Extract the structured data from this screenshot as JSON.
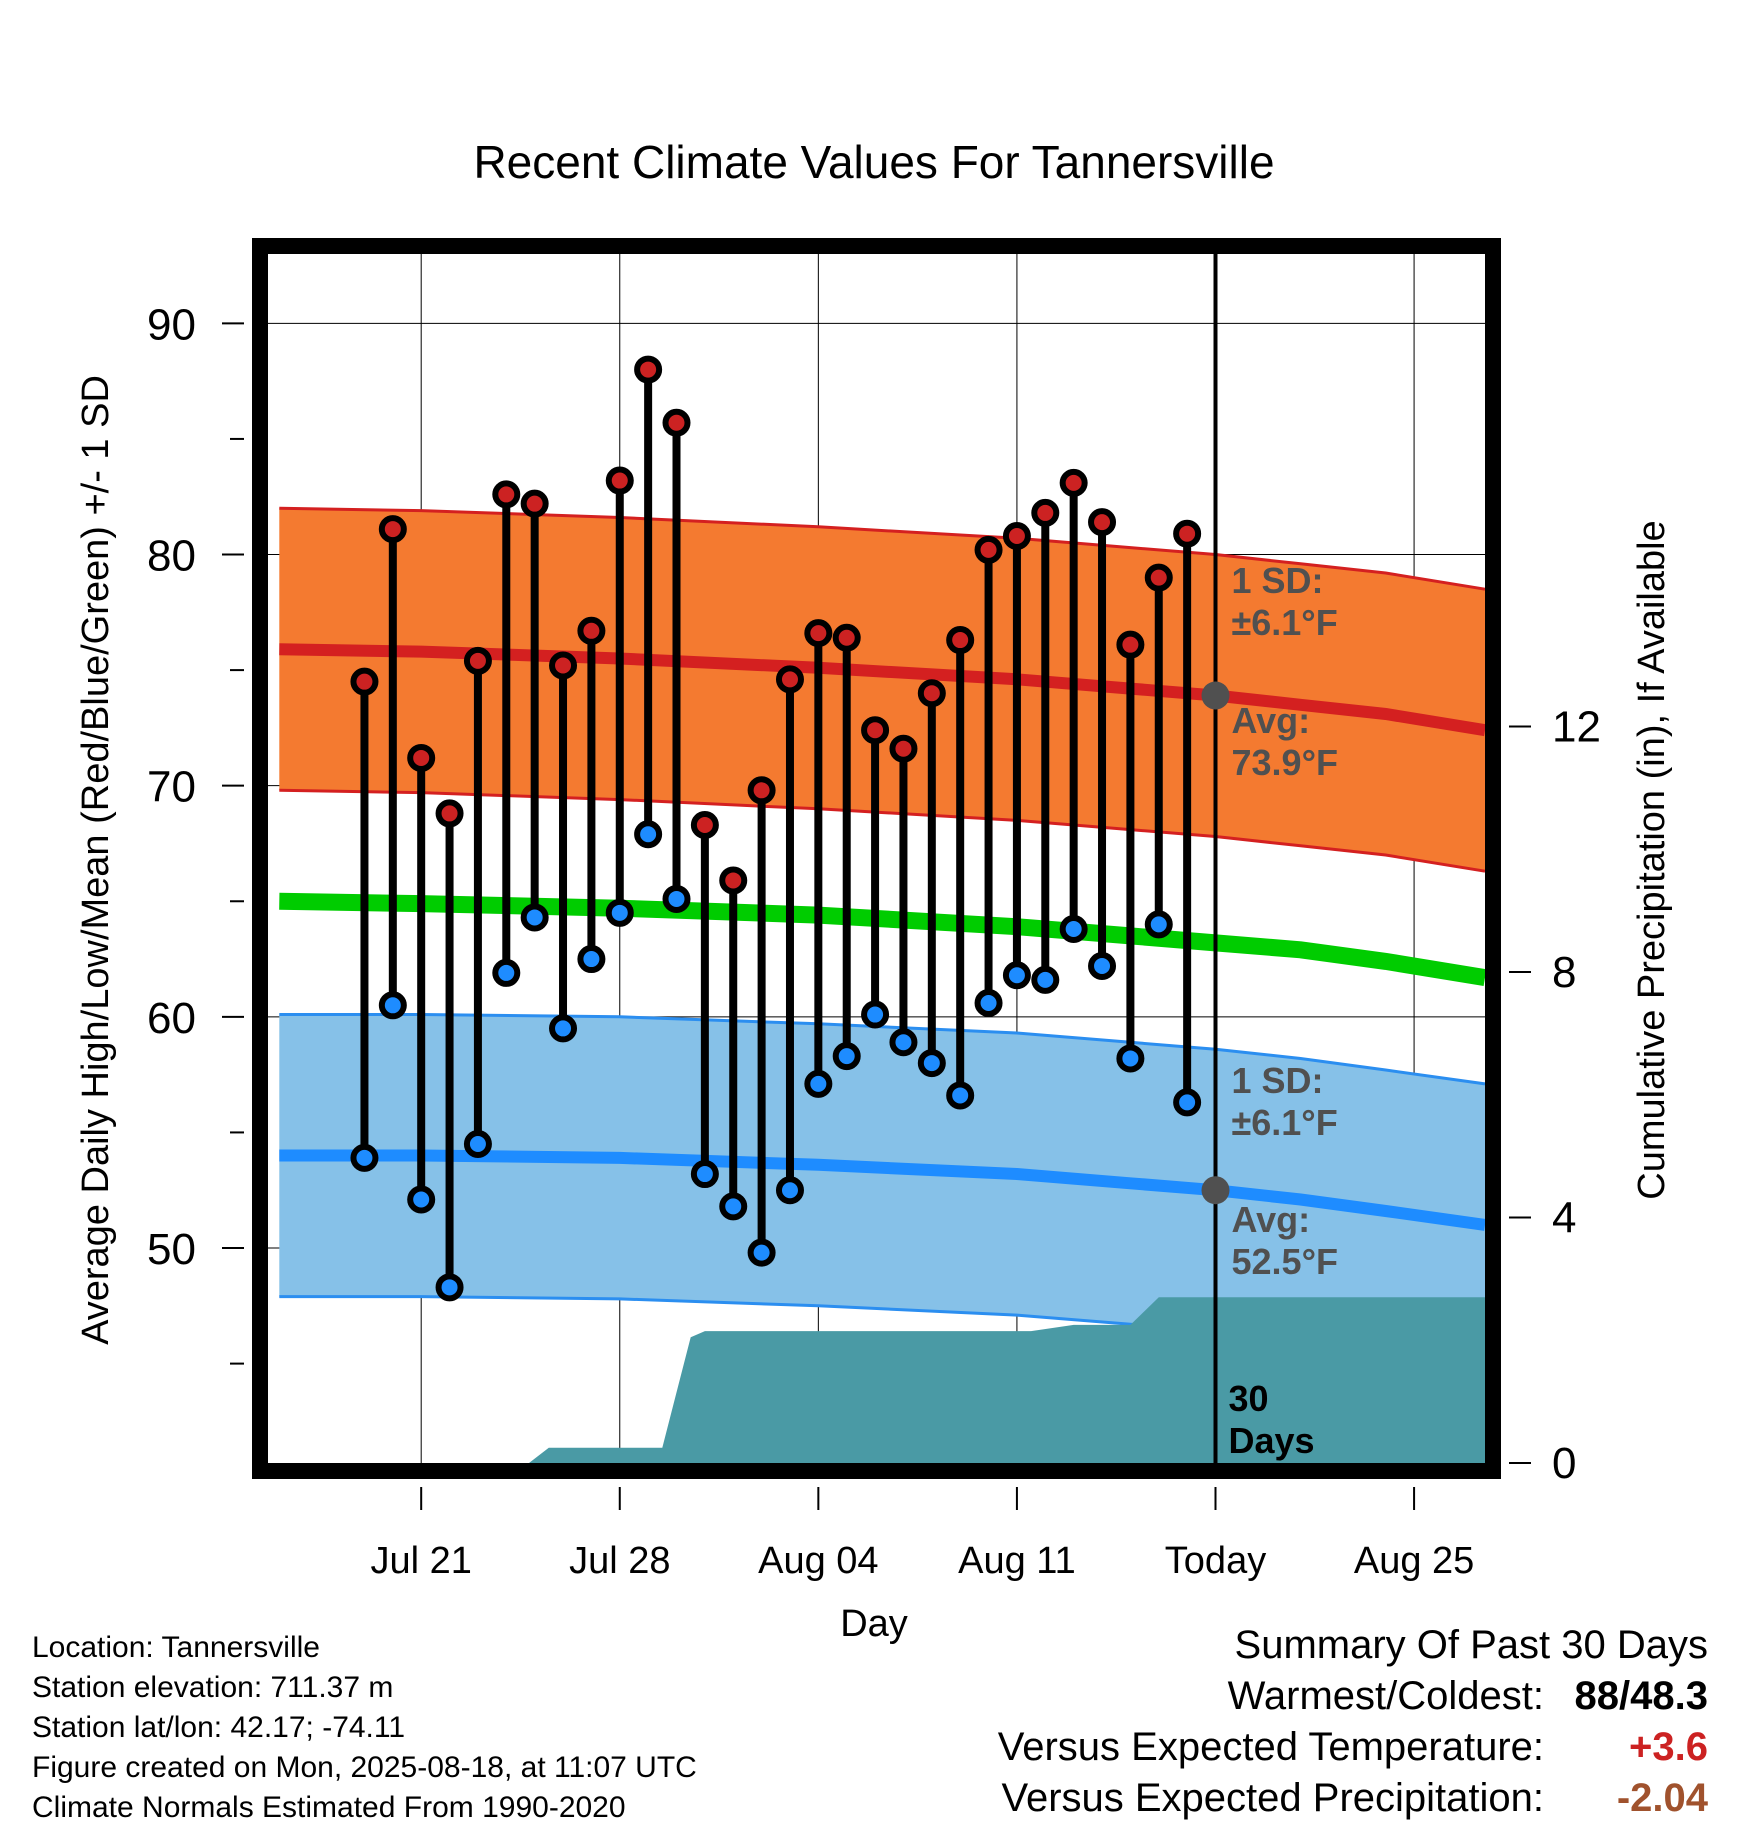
{
  "chart_data": {
    "type": "line",
    "title": "Recent Climate Values For Tannersville",
    "xlabel": "Day",
    "ylabel": "Average Daily High/Low/Mean (Red/Blue/Green) +/- 1 SD",
    "y2label": "Cumulative Precipitation (in), If Available",
    "ylim": [
      40.7,
      93
    ],
    "y2lim": [
      0,
      19.7
    ],
    "xlim": [
      -33.4,
      9.5
    ],
    "yticks": [
      50,
      60,
      70,
      80,
      90
    ],
    "y2ticks": [
      0,
      4,
      8,
      12
    ],
    "xticks": [
      {
        "day": -28,
        "label": "Jul 21"
      },
      {
        "day": -21,
        "label": "Jul 28"
      },
      {
        "day": -14,
        "label": "Aug 04"
      },
      {
        "day": -7,
        "label": "Aug 11"
      },
      {
        "day": 0,
        "label": "Today"
      },
      {
        "day": 7,
        "label": "Aug 25"
      }
    ],
    "grid": true,
    "days": [
      -30,
      -29,
      -28,
      -27,
      -26,
      -25,
      -24,
      -23,
      -22,
      -21,
      -20,
      -19,
      -18,
      -17,
      -16,
      -15,
      -14,
      -13,
      -12,
      -11,
      -10,
      -9,
      -8,
      -7,
      -6,
      -5,
      -4,
      -3,
      -2,
      -1
    ],
    "highs": [
      74.5,
      81.1,
      71.2,
      68.8,
      75.4,
      82.6,
      82.2,
      75.2,
      76.7,
      83.2,
      88.0,
      85.7,
      68.3,
      65.9,
      69.8,
      74.6,
      76.6,
      76.4,
      72.4,
      71.6,
      74.0,
      76.3,
      80.2,
      80.8,
      81.8,
      83.1,
      81.4,
      76.1,
      79.0,
      80.9
    ],
    "lows": [
      53.9,
      60.5,
      52.1,
      48.3,
      54.5,
      61.9,
      64.3,
      59.5,
      62.5,
      64.5,
      67.9,
      65.1,
      53.2,
      51.8,
      49.8,
      52.5,
      57.1,
      58.3,
      60.1,
      58.9,
      58.0,
      56.6,
      60.6,
      61.8,
      61.6,
      63.8,
      62.2,
      58.2,
      64.0,
      56.3
    ],
    "normals_x": [
      -33,
      -28,
      -21,
      -14,
      -7,
      -3,
      0,
      3,
      6,
      9.5
    ],
    "normal_high": [
      75.9,
      75.8,
      75.5,
      75.1,
      74.6,
      74.2,
      73.9,
      73.5,
      73.1,
      72.4
    ],
    "normal_low": [
      54.0,
      54.0,
      53.9,
      53.6,
      53.2,
      52.8,
      52.5,
      52.1,
      51.6,
      51.0
    ],
    "normal_mean": [
      65.0,
      64.9,
      64.7,
      64.4,
      63.9,
      63.5,
      63.2,
      62.9,
      62.4,
      61.7
    ],
    "sd": 6.1,
    "precip_x": [
      -33.4,
      -24.2,
      -23.5,
      -21.5,
      -20.5,
      -19.5,
      -18.5,
      -18.0,
      -17.0,
      -10.0,
      -7.0,
      -6.5,
      -5.0,
      -3.0,
      -2.0,
      9.5
    ],
    "precip_cum": [
      0,
      0,
      0.25,
      0.25,
      0.25,
      0.25,
      2.05,
      2.15,
      2.15,
      2.15,
      2.15,
      2.15,
      2.25,
      2.25,
      2.7,
      2.7
    ],
    "annotations": {
      "high_sd": "1 SD:\n±6.1°F",
      "high_avg": "Avg:\n73.9°F",
      "low_sd": "1 SD:\n±6.1°F",
      "low_avg": "Avg:\n52.5°F",
      "window": "30\nDays"
    },
    "colors": {
      "high_band": "#f47a30",
      "high_band_edge": "#d42020",
      "high_line": "#d42020",
      "low_band": "#86c1e8",
      "low_band_edge": "#2b8ef0",
      "low_line": "#1e8cff",
      "mean_line": "#00cc00",
      "precip": "#4a9aa5",
      "high_point": "#cc2222",
      "low_point": "#1e8cff",
      "annotation_text": "#505050"
    }
  },
  "footer": {
    "location": "Location: Tannersville",
    "elevation": "Station elevation: 711.37 m",
    "latlon": "Station lat/lon: 42.17; -74.11",
    "created": "Figure created on Mon, 2025-08-18, at 11:07 UTC",
    "normals": "Climate Normals Estimated From 1990-2020"
  },
  "summary": {
    "title": "Summary Of Past 30 Days",
    "warmest_coldest_label": "Warmest/Coldest:",
    "warmest_coldest_value": "88/48.3",
    "temp_label": "Versus Expected Temperature:",
    "temp_value": "+3.6",
    "precip_label": "Versus Expected Precipitation:",
    "precip_value": "-2.04"
  }
}
